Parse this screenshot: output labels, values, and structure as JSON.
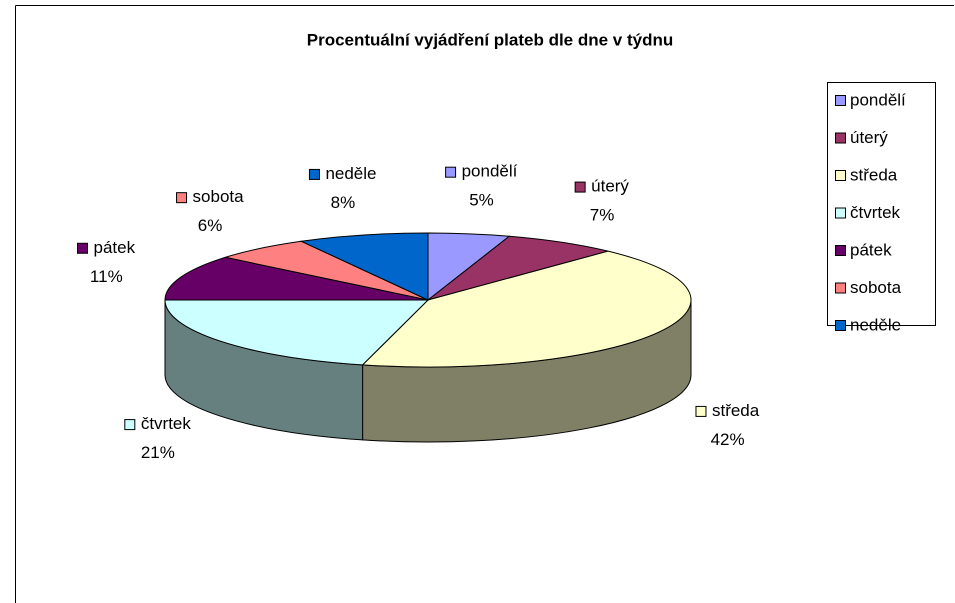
{
  "chart_data": {
    "type": "pie",
    "title": "Procentuální vyjádření plateb dle dne v týdnu",
    "categories": [
      "pondělí",
      "úterý",
      "středa",
      "čtvrtek",
      "pátek",
      "sobota",
      "neděle"
    ],
    "values": [
      5,
      7,
      42,
      21,
      11,
      6,
      8
    ],
    "value_labels": [
      "5%",
      "7%",
      "42%",
      "21%",
      "11%",
      "6%",
      "8%"
    ],
    "colors": [
      "#9999FF",
      "#993366",
      "#FFFFCC",
      "#CCFFFF",
      "#660066",
      "#FF8080",
      "#0066CC"
    ],
    "legend": "right"
  }
}
